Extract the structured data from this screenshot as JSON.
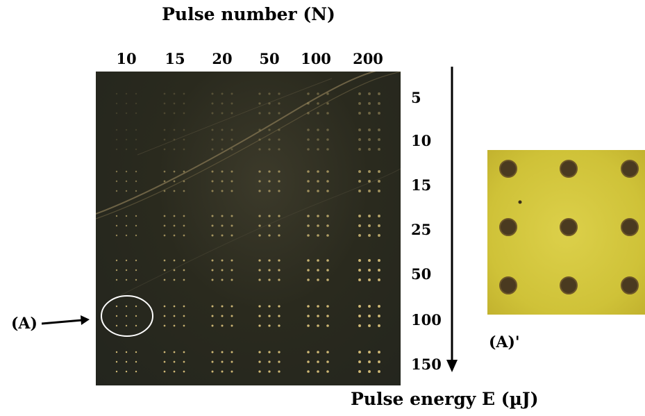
{
  "header": {
    "title": "Pulse number (N)"
  },
  "columns": {
    "labels": [
      "10",
      "15",
      "20",
      "50",
      "100",
      "200"
    ]
  },
  "rows": {
    "labels": [
      "5",
      "10",
      "15",
      "25",
      "50",
      "100",
      "150"
    ]
  },
  "axis": {
    "energy_label": "Pulse energy E (µJ)"
  },
  "annotations": {
    "left_marker": "(A)",
    "inset_label": "(A)'"
  },
  "colors": {
    "micrograph_bg": "#2a2a1e",
    "hole_spot": "#d8c07a",
    "inset_bg": "#d4c63e",
    "inset_hole": "#4a3a20",
    "circle_marker": "#ffffff"
  }
}
